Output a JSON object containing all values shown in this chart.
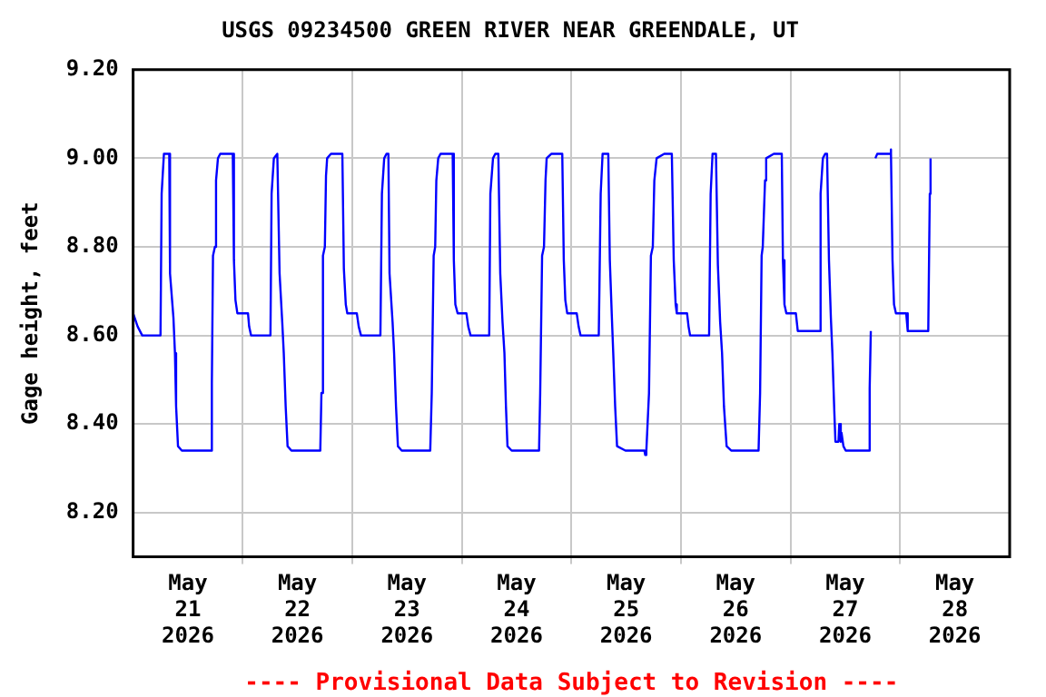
{
  "chart_data": {
    "type": "line",
    "title": "USGS 09234500 GREEN RIVER NEAR GREENDALE, UT",
    "ylabel": "Gage height, feet",
    "annotations": [
      "---- Provisional Data Subject to Revision ----"
    ],
    "xlim": [
      "2026-05-21T00:00",
      "2026-05-29T00:00"
    ],
    "ylim": [
      8.1,
      9.2
    ],
    "xticks": [
      {
        "value": "2026-05-21T12:00",
        "label": "May\n21\n2026"
      },
      {
        "value": "2026-05-22T00:00",
        "label": null
      },
      {
        "value": "2026-05-22T12:00",
        "label": "May\n22\n2026"
      },
      {
        "value": "2026-05-23T00:00",
        "label": null
      },
      {
        "value": "2026-05-23T12:00",
        "label": "May\n23\n2026"
      },
      {
        "value": "2026-05-24T00:00",
        "label": null
      },
      {
        "value": "2026-05-24T12:00",
        "label": "May\n24\n2026"
      },
      {
        "value": "2026-05-25T00:00",
        "label": null
      },
      {
        "value": "2026-05-25T12:00",
        "label": "May\n25\n2026"
      },
      {
        "value": "2026-05-26T00:00",
        "label": null
      },
      {
        "value": "2026-05-26T12:00",
        "label": "May\n26\n2026"
      },
      {
        "value": "2026-05-27T00:00",
        "label": null
      },
      {
        "value": "2026-05-27T12:00",
        "label": "May\n27\n2026"
      },
      {
        "value": "2026-05-28T00:00",
        "label": null
      },
      {
        "value": "2026-05-28T12:00",
        "label": "May\n28\n2026"
      }
    ],
    "yticks": [
      {
        "value": 8.2,
        "label": "8.20"
      },
      {
        "value": 8.4,
        "label": "8.40"
      },
      {
        "value": 8.6,
        "label": "8.60"
      },
      {
        "value": 8.8,
        "label": "8.80"
      },
      {
        "value": 9.0,
        "label": "9.00"
      },
      {
        "value": 9.2,
        "label": "9.20"
      }
    ],
    "grid": true,
    "marker": "none",
    "line_style": "solid",
    "x": [
      "2026-05-21T00:00",
      "2026-05-21T01:00",
      "2026-05-21T02:00",
      "2026-05-21T06:00",
      "2026-05-21T06:15",
      "2026-05-21T06:45",
      "2026-05-21T07:55",
      "2026-05-21T08:05",
      "2026-05-21T08:50",
      "2026-05-21T09:10",
      "2026-05-21T09:25",
      "2026-05-21T09:50",
      "2026-05-21T10:40",
      "2026-05-21T17:00",
      "2026-05-21T17:15",
      "2026-05-21T17:30",
      "2026-05-21T17:55",
      "2026-05-21T18:10",
      "2026-05-21T18:35",
      "2026-05-21T19:05",
      "2026-05-21T21:50",
      "2026-05-21T22:05",
      "2026-05-21T22:25",
      "2026-05-21T22:50",
      "2026-05-22T01:10",
      "2026-05-22T01:25",
      "2026-05-22T01:50",
      "2026-05-22T06:05",
      "2026-05-22T06:20",
      "2026-05-22T06:50",
      "2026-05-22T07:35",
      "2026-05-22T08:05",
      "2026-05-22T08:40",
      "2026-05-22T09:00",
      "2026-05-22T09:25",
      "2026-05-22T09:50",
      "2026-05-22T10:40",
      "2026-05-22T17:00",
      "2026-05-22T17:15",
      "2026-05-22T17:35",
      "2026-05-22T18:00",
      "2026-05-22T18:15",
      "2026-05-22T18:30",
      "2026-05-22T19:20",
      "2026-05-22T21:50",
      "2026-05-22T22:10",
      "2026-05-22T22:35",
      "2026-05-22T22:55",
      "2026-05-23T01:00",
      "2026-05-23T01:25",
      "2026-05-23T01:55",
      "2026-05-23T06:10",
      "2026-05-23T06:30",
      "2026-05-23T07:00",
      "2026-05-23T07:30",
      "2026-05-23T07:55",
      "2026-05-23T08:10",
      "2026-05-23T08:50",
      "2026-05-23T09:10",
      "2026-05-23T09:35",
      "2026-05-23T10:00",
      "2026-05-23T10:50",
      "2026-05-23T17:05",
      "2026-05-23T17:25",
      "2026-05-23T17:50",
      "2026-05-23T18:10",
      "2026-05-23T18:25",
      "2026-05-23T18:50",
      "2026-05-23T19:20",
      "2026-05-23T22:00",
      "2026-05-23T22:15",
      "2026-05-23T22:35",
      "2026-05-23T23:05",
      "2026-05-24T01:00",
      "2026-05-24T01:25",
      "2026-05-24T01:55",
      "2026-05-24T06:00",
      "2026-05-24T06:15",
      "2026-05-24T06:50",
      "2026-05-24T07:20",
      "2026-05-24T08:00",
      "2026-05-24T08:25",
      "2026-05-24T08:55",
      "2026-05-24T09:20",
      "2026-05-24T09:40",
      "2026-05-24T10:00",
      "2026-05-24T10:55",
      "2026-05-24T16:55",
      "2026-05-24T17:10",
      "2026-05-24T17:35",
      "2026-05-24T18:00",
      "2026-05-24T18:20",
      "2026-05-24T18:35",
      "2026-05-24T19:35",
      "2026-05-24T22:00",
      "2026-05-24T22:20",
      "2026-05-24T22:40",
      "2026-05-24T23:05",
      "2026-05-25T01:10",
      "2026-05-25T01:35",
      "2026-05-25T02:00",
      "2026-05-25T06:00",
      "2026-05-25T06:25",
      "2026-05-25T06:50",
      "2026-05-25T08:05",
      "2026-05-25T08:25",
      "2026-05-25T08:50",
      "2026-05-25T09:10",
      "2026-05-25T09:35",
      "2026-05-25T10:00",
      "2026-05-25T11:50",
      "2026-05-25T16:00",
      "2026-05-25T16:10",
      "2026-05-25T16:25",
      "2026-05-25T17:00",
      "2026-05-25T17:25",
      "2026-05-25T17:50",
      "2026-05-25T18:10",
      "2026-05-25T18:40",
      "2026-05-25T20:20",
      "2026-05-25T22:00",
      "2026-05-25T22:25",
      "2026-05-25T22:50",
      "2026-05-25T23:05",
      "2026-05-26T01:20",
      "2026-05-26T01:40",
      "2026-05-26T02:00",
      "2026-05-26T06:10",
      "2026-05-26T06:30",
      "2026-05-26T06:55",
      "2026-05-26T07:40",
      "2026-05-26T08:05",
      "2026-05-26T08:35",
      "2026-05-26T09:00",
      "2026-05-26T09:25",
      "2026-05-26T10:00",
      "2026-05-26T11:00",
      "2026-05-26T17:00",
      "2026-05-26T17:20",
      "2026-05-26T17:40",
      "2026-05-26T17:55",
      "2026-05-26T18:25",
      "2026-05-26T18:40",
      "2026-05-26T20:20",
      "2026-05-26T22:05",
      "2026-05-26T22:20",
      "2026-05-26T22:40",
      "2026-05-26T23:05",
      "2026-05-27T01:10",
      "2026-05-27T01:35",
      "2026-05-27T06:25",
      "2026-05-27T06:35",
      "2026-05-27T07:05",
      "2026-05-27T07:35",
      "2026-05-27T08:00",
      "2026-05-27T08:25",
      "2026-05-27T08:50",
      "2026-05-27T09:10",
      "2026-05-27T09:35",
      "2026-05-27T09:50",
      "2026-05-27T10:30",
      "2026-05-27T10:40",
      "2026-05-27T11:00",
      "2026-05-27T11:10",
      "2026-05-27T11:35",
      "2026-05-27T12:05",
      "2026-05-27T17:05",
      "2026-05-27T17:20",
      "2026-05-27T17:35",
      "2026-05-27T18:00",
      "2026-05-27T18:35",
      "2026-05-27T19:00",
      "2026-05-27T21:50",
      "2026-05-27T21:55",
      "2026-05-27T22:05",
      "2026-05-27T22:20",
      "2026-05-27T22:40",
      "2026-05-27T23:05",
      "2026-05-28T01:20",
      "2026-05-28T01:40",
      "2026-05-28T06:10",
      "2026-05-28T06:30",
      "2026-05-28T06:40"
    ],
    "series": [
      {
        "color": "#0000ff",
        "values": [
          8.65,
          8.62,
          8.6,
          8.6,
          8.92,
          9.01,
          9.01,
          8.74,
          8.64,
          8.56,
          8.44,
          8.35,
          8.34,
          8.34,
          8.49,
          8.78,
          8.8,
          8.95,
          9.0,
          9.01,
          9.01,
          8.77,
          8.68,
          8.65,
          8.65,
          8.62,
          8.6,
          8.6,
          8.92,
          9.0,
          9.01,
          8.74,
          8.63,
          8.56,
          8.44,
          8.35,
          8.34,
          8.34,
          8.47,
          8.78,
          8.8,
          8.96,
          9.0,
          9.01,
          9.01,
          8.75,
          8.67,
          8.65,
          8.65,
          8.62,
          8.6,
          8.6,
          8.92,
          9.0,
          9.01,
          9.01,
          8.74,
          8.63,
          8.56,
          8.44,
          8.35,
          8.34,
          8.34,
          8.47,
          8.78,
          8.8,
          8.95,
          9.0,
          9.01,
          9.01,
          8.77,
          8.67,
          8.65,
          8.65,
          8.62,
          8.6,
          8.6,
          8.92,
          9.0,
          9.01,
          9.01,
          8.74,
          8.63,
          8.56,
          8.44,
          8.35,
          8.34,
          8.34,
          8.47,
          8.78,
          8.8,
          8.95,
          9.0,
          9.01,
          9.01,
          8.77,
          8.68,
          8.65,
          8.65,
          8.62,
          8.6,
          8.6,
          8.92,
          9.01,
          9.01,
          8.77,
          8.65,
          8.56,
          8.44,
          8.35,
          8.34,
          8.34,
          8.33,
          8.34,
          8.47,
          8.78,
          8.8,
          8.95,
          9.0,
          9.01,
          9.01,
          8.77,
          8.67,
          8.65,
          8.65,
          8.62,
          8.6,
          8.6,
          8.92,
          9.01,
          9.01,
          8.76,
          8.63,
          8.56,
          8.44,
          8.35,
          8.34,
          8.34,
          8.47,
          8.78,
          8.8,
          8.95,
          9.0,
          9.01,
          9.01,
          8.77,
          8.67,
          8.65,
          8.65,
          8.61,
          8.61,
          8.92,
          9.0,
          9.01,
          9.01,
          8.77,
          8.64,
          8.56,
          8.43,
          8.36,
          8.36,
          8.4,
          8.36,
          8.38,
          8.35,
          8.34,
          8.34,
          8.48,
          8.61,
          null,
          9.0,
          9.01,
          9.01,
          9.02,
          9.01,
          8.77,
          8.67,
          8.65,
          8.65,
          8.61,
          8.61,
          8.92,
          9.0
        ]
      }
    ]
  }
}
